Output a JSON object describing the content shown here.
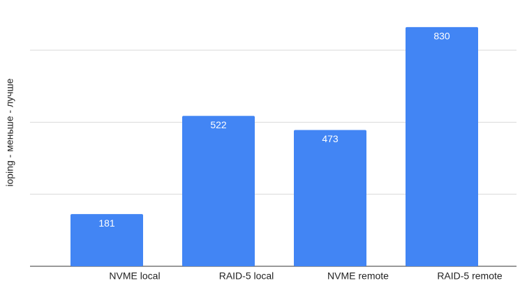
{
  "chart_data": {
    "type": "bar",
    "y_label": "ioping - меньше - лучше",
    "categories": [
      "NVME local",
      "RAID-5 local",
      "NVME remote",
      "RAID-5 remote"
    ],
    "values": [
      181,
      522,
      473,
      830
    ],
    "color": "#4285f4",
    "ylim": [
      0,
      900
    ],
    "yticks": [
      0,
      250,
      500,
      750
    ],
    "grid": true
  }
}
